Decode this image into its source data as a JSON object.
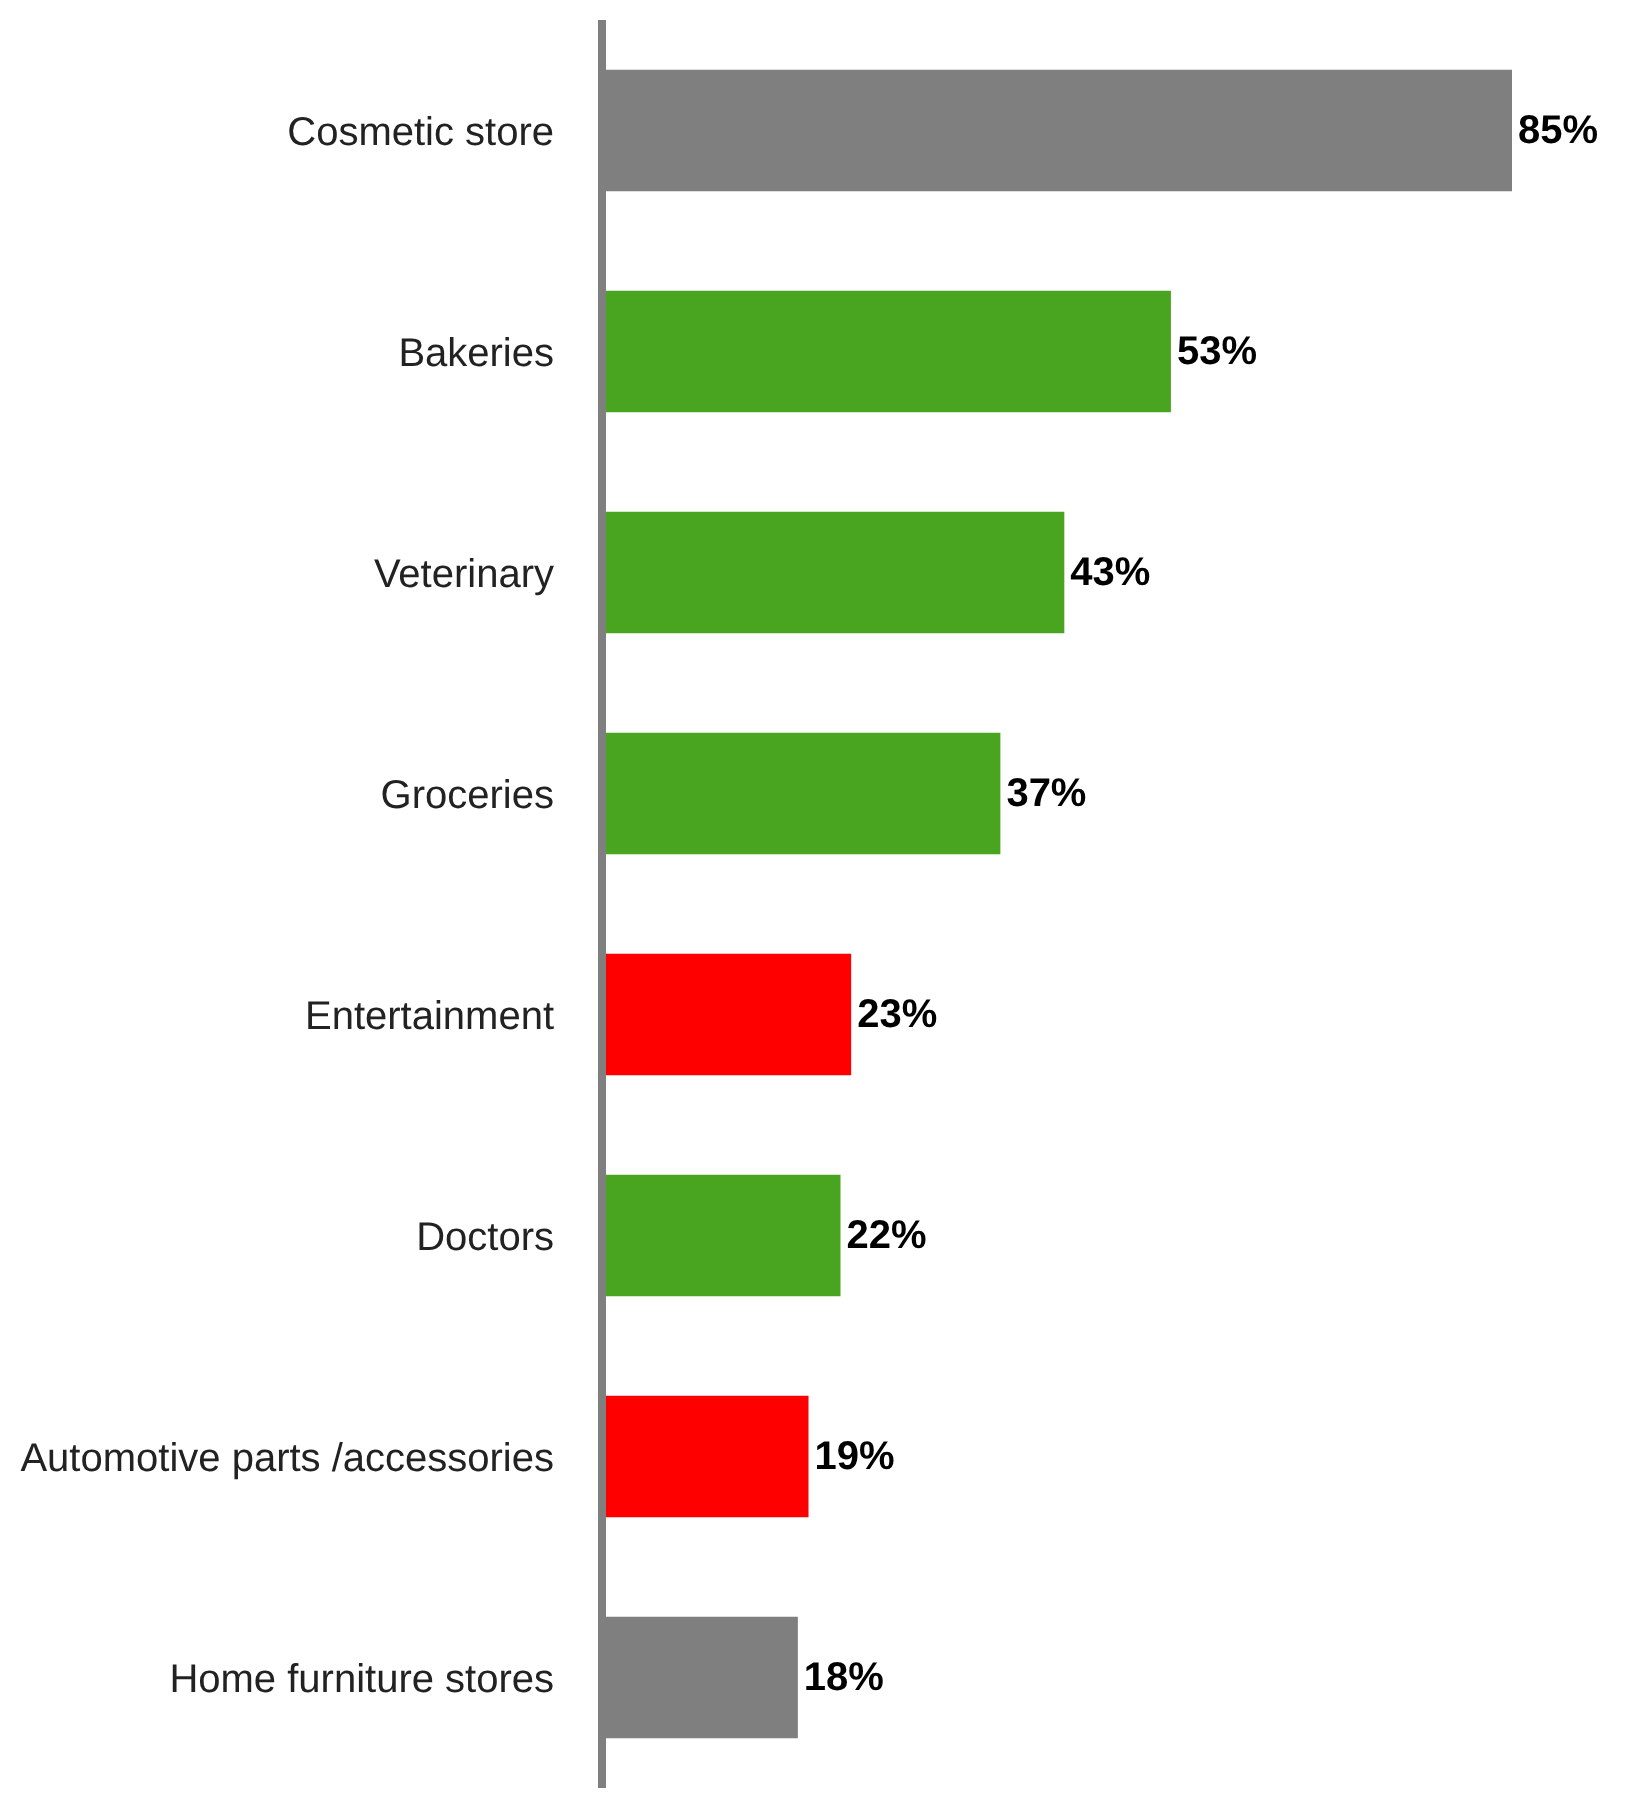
{
  "chart_data": {
    "type": "bar",
    "orientation": "horizontal",
    "categories": [
      "Cosmetic store",
      "Bakeries",
      "Veterinary",
      "Groceries",
      "Entertainment",
      "Doctors",
      "Automotive parts /accessories",
      "Home furniture stores"
    ],
    "values": [
      85,
      53,
      43,
      37,
      23,
      22,
      19,
      18
    ],
    "colors": [
      "#7f7f7f",
      "#49a51f",
      "#49a51f",
      "#49a51f",
      "#ff0000",
      "#49a51f",
      "#ff0000",
      "#7f7f7f"
    ],
    "value_labels": [
      "85%",
      "53%",
      "43%",
      "37%",
      "23%",
      "22%",
      "19%",
      "18%"
    ],
    "legend": false
  }
}
